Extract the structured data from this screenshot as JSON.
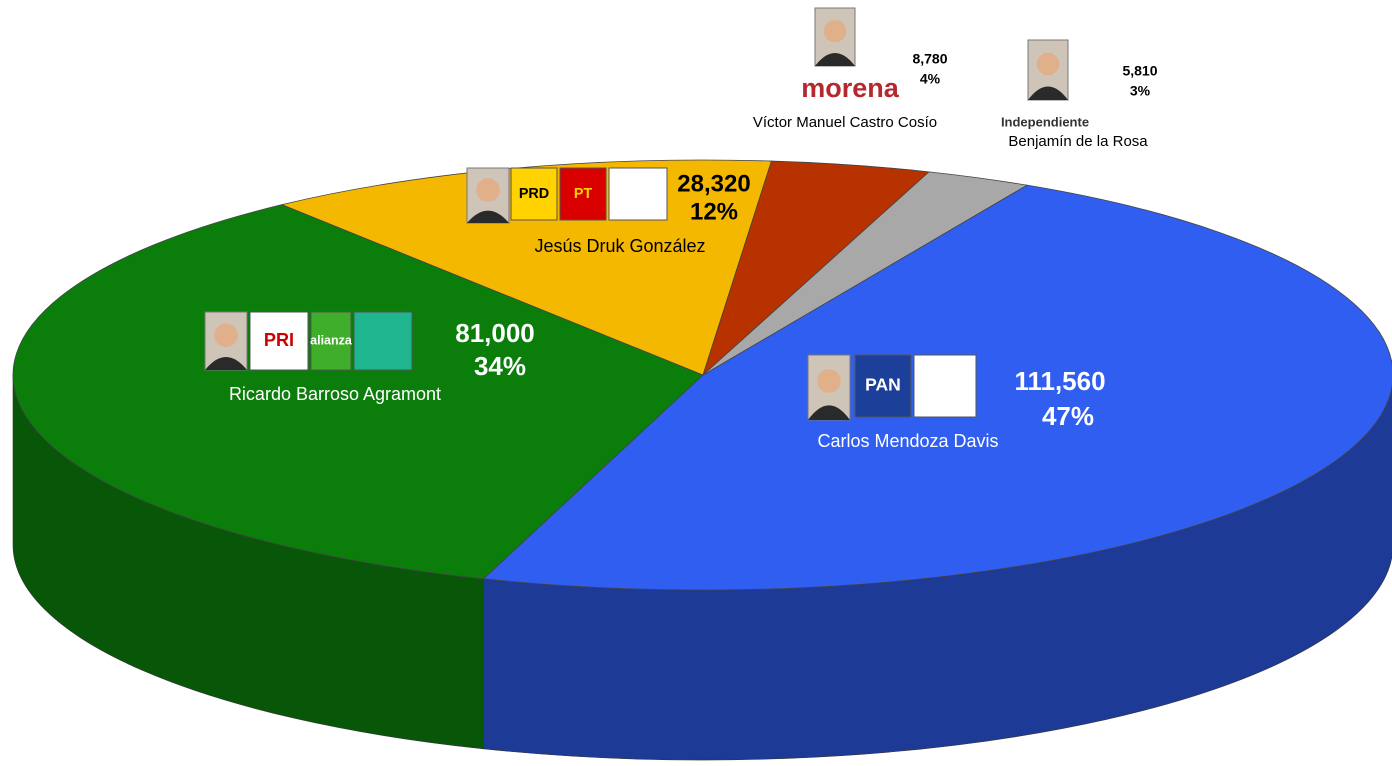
{
  "chart_data": {
    "type": "pie",
    "categories": [
      "Carlos Mendoza Davis",
      "Ricardo Barroso Agramont",
      "Jesús Druk González",
      "Víctor Manuel Castro Cosío",
      "Benjamín de la Rosa"
    ],
    "values": [
      111560,
      81000,
      28320,
      8780,
      5810
    ],
    "value_labels": [
      "111,560",
      "81,000",
      "28,320",
      "8,780",
      "5,810"
    ],
    "percents": [
      47,
      34,
      12,
      4,
      3
    ],
    "percent_labels": [
      "47%",
      "34%",
      "12%",
      "4%",
      "3%"
    ],
    "colors": [
      "#2f5ef0",
      "#0b7d0b",
      "#f5b800",
      "#b83200",
      "#a8a8a8"
    ],
    "side_colors": [
      "#1d3a96",
      "#085708",
      "#a67c00",
      "#7a2000",
      "#6e6e6e"
    ],
    "party_labels": [
      [
        "PAN"
      ],
      [
        "PRI",
        "alianza"
      ],
      [
        "PRD",
        "PT"
      ],
      [
        "morena"
      ],
      [
        "Independiente"
      ]
    ]
  }
}
